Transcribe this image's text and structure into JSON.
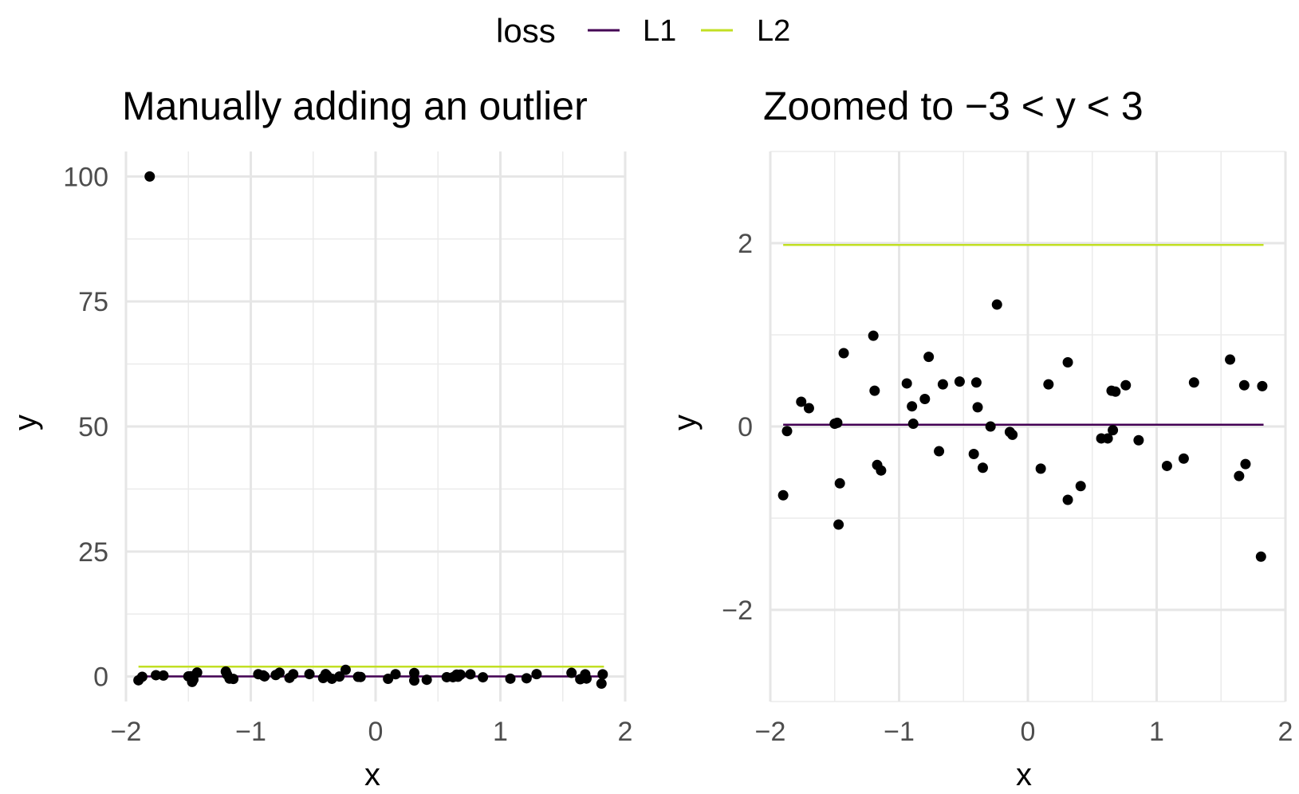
{
  "legend": {
    "title": "loss",
    "entries": [
      {
        "label": "L1",
        "color": "#440154"
      },
      {
        "label": "L2",
        "color": "#c2df23"
      }
    ],
    "position": "top"
  },
  "chart_data": [
    {
      "type": "scatter",
      "title": "Manually adding an outlier",
      "xlabel": "x",
      "ylabel": "y",
      "xlim": [
        -2.0,
        2.0
      ],
      "ylim": [
        -5,
        105
      ],
      "xticks": [
        -2,
        -1,
        0,
        1,
        2
      ],
      "xtick_labels": [
        "−2",
        "−1",
        "0",
        "1",
        "2"
      ],
      "yticks": [
        0,
        25,
        50,
        75,
        100
      ],
      "ytick_labels": [
        "0",
        "25",
        "50",
        "75",
        "100"
      ],
      "grid": true,
      "lines": [
        {
          "name": "L1",
          "x": [
            -1.9,
            1.83
          ],
          "y": [
            0.02,
            0.02
          ]
        },
        {
          "name": "L2",
          "x": [
            -1.9,
            1.83
          ],
          "y": [
            1.98,
            1.98
          ]
        }
      ],
      "points": {
        "x": [
          -1.9,
          -1.87,
          -1.81,
          -1.76,
          -1.7,
          -1.5,
          -1.48,
          -1.47,
          -1.46,
          -1.43,
          -1.2,
          -1.19,
          -1.17,
          -1.14,
          -0.94,
          -0.9,
          -0.89,
          -0.8,
          -0.77,
          -0.69,
          -0.66,
          -0.53,
          -0.42,
          -0.4,
          -0.39,
          -0.35,
          -0.29,
          -0.24,
          -0.14,
          -0.12,
          0.1,
          0.16,
          0.31,
          0.31,
          0.41,
          0.57,
          0.62,
          0.65,
          0.66,
          0.68,
          0.76,
          0.86,
          1.08,
          1.21,
          1.29,
          1.57,
          1.64,
          1.68,
          1.69,
          1.81,
          1.82
        ],
        "y": [
          -0.75,
          -0.05,
          100,
          0.27,
          0.2,
          0.03,
          0.04,
          -1.07,
          -0.62,
          0.8,
          0.99,
          0.39,
          -0.42,
          -0.48,
          0.47,
          0.22,
          0.03,
          0.3,
          0.76,
          -0.27,
          0.46,
          0.49,
          -0.3,
          0.48,
          0.21,
          -0.45,
          0.0,
          1.33,
          -0.06,
          -0.09,
          -0.46,
          0.46,
          0.7,
          -0.8,
          -0.65,
          -0.13,
          -0.13,
          0.39,
          -0.04,
          0.38,
          0.45,
          -0.15,
          -0.43,
          -0.35,
          0.48,
          0.73,
          -0.54,
          0.45,
          -0.41,
          -1.42,
          0.44
        ]
      }
    },
    {
      "type": "scatter",
      "title": "Zoomed to −3 < y < 3",
      "xlabel": "x",
      "ylabel": "y",
      "xlim": [
        -2.0,
        2.0
      ],
      "ylim": [
        -3,
        3
      ],
      "xticks": [
        -2,
        -1,
        0,
        1,
        2
      ],
      "xtick_labels": [
        "−2",
        "−1",
        "0",
        "1",
        "2"
      ],
      "yticks": [
        -2,
        0,
        2
      ],
      "ytick_labels": [
        "−2",
        "0",
        "2"
      ],
      "grid": true,
      "lines": [
        {
          "name": "L1",
          "x": [
            -1.9,
            1.83
          ],
          "y": [
            0.02,
            0.02
          ]
        },
        {
          "name": "L2",
          "x": [
            -1.9,
            1.83
          ],
          "y": [
            1.98,
            1.98
          ]
        }
      ],
      "points": {
        "x": [
          -1.9,
          -1.87,
          -1.76,
          -1.7,
          -1.5,
          -1.48,
          -1.47,
          -1.46,
          -1.43,
          -1.2,
          -1.19,
          -1.17,
          -1.14,
          -0.94,
          -0.9,
          -0.89,
          -0.8,
          -0.77,
          -0.69,
          -0.66,
          -0.53,
          -0.42,
          -0.4,
          -0.39,
          -0.35,
          -0.29,
          -0.24,
          -0.14,
          -0.12,
          0.1,
          0.16,
          0.31,
          0.31,
          0.41,
          0.57,
          0.62,
          0.65,
          0.66,
          0.68,
          0.76,
          0.86,
          1.08,
          1.21,
          1.29,
          1.57,
          1.64,
          1.68,
          1.69,
          1.81,
          1.82
        ],
        "y": [
          -0.75,
          -0.05,
          0.27,
          0.2,
          0.03,
          0.04,
          -1.07,
          -0.62,
          0.8,
          0.99,
          0.39,
          -0.42,
          -0.48,
          0.47,
          0.22,
          0.03,
          0.3,
          0.76,
          -0.27,
          0.46,
          0.49,
          -0.3,
          0.48,
          0.21,
          -0.45,
          0.0,
          1.33,
          -0.06,
          -0.09,
          -0.46,
          0.46,
          0.7,
          -0.8,
          -0.65,
          -0.13,
          -0.13,
          0.39,
          -0.04,
          0.38,
          0.45,
          -0.15,
          -0.43,
          -0.35,
          0.48,
          0.73,
          -0.54,
          0.45,
          -0.41,
          -1.42,
          0.44
        ]
      }
    }
  ]
}
